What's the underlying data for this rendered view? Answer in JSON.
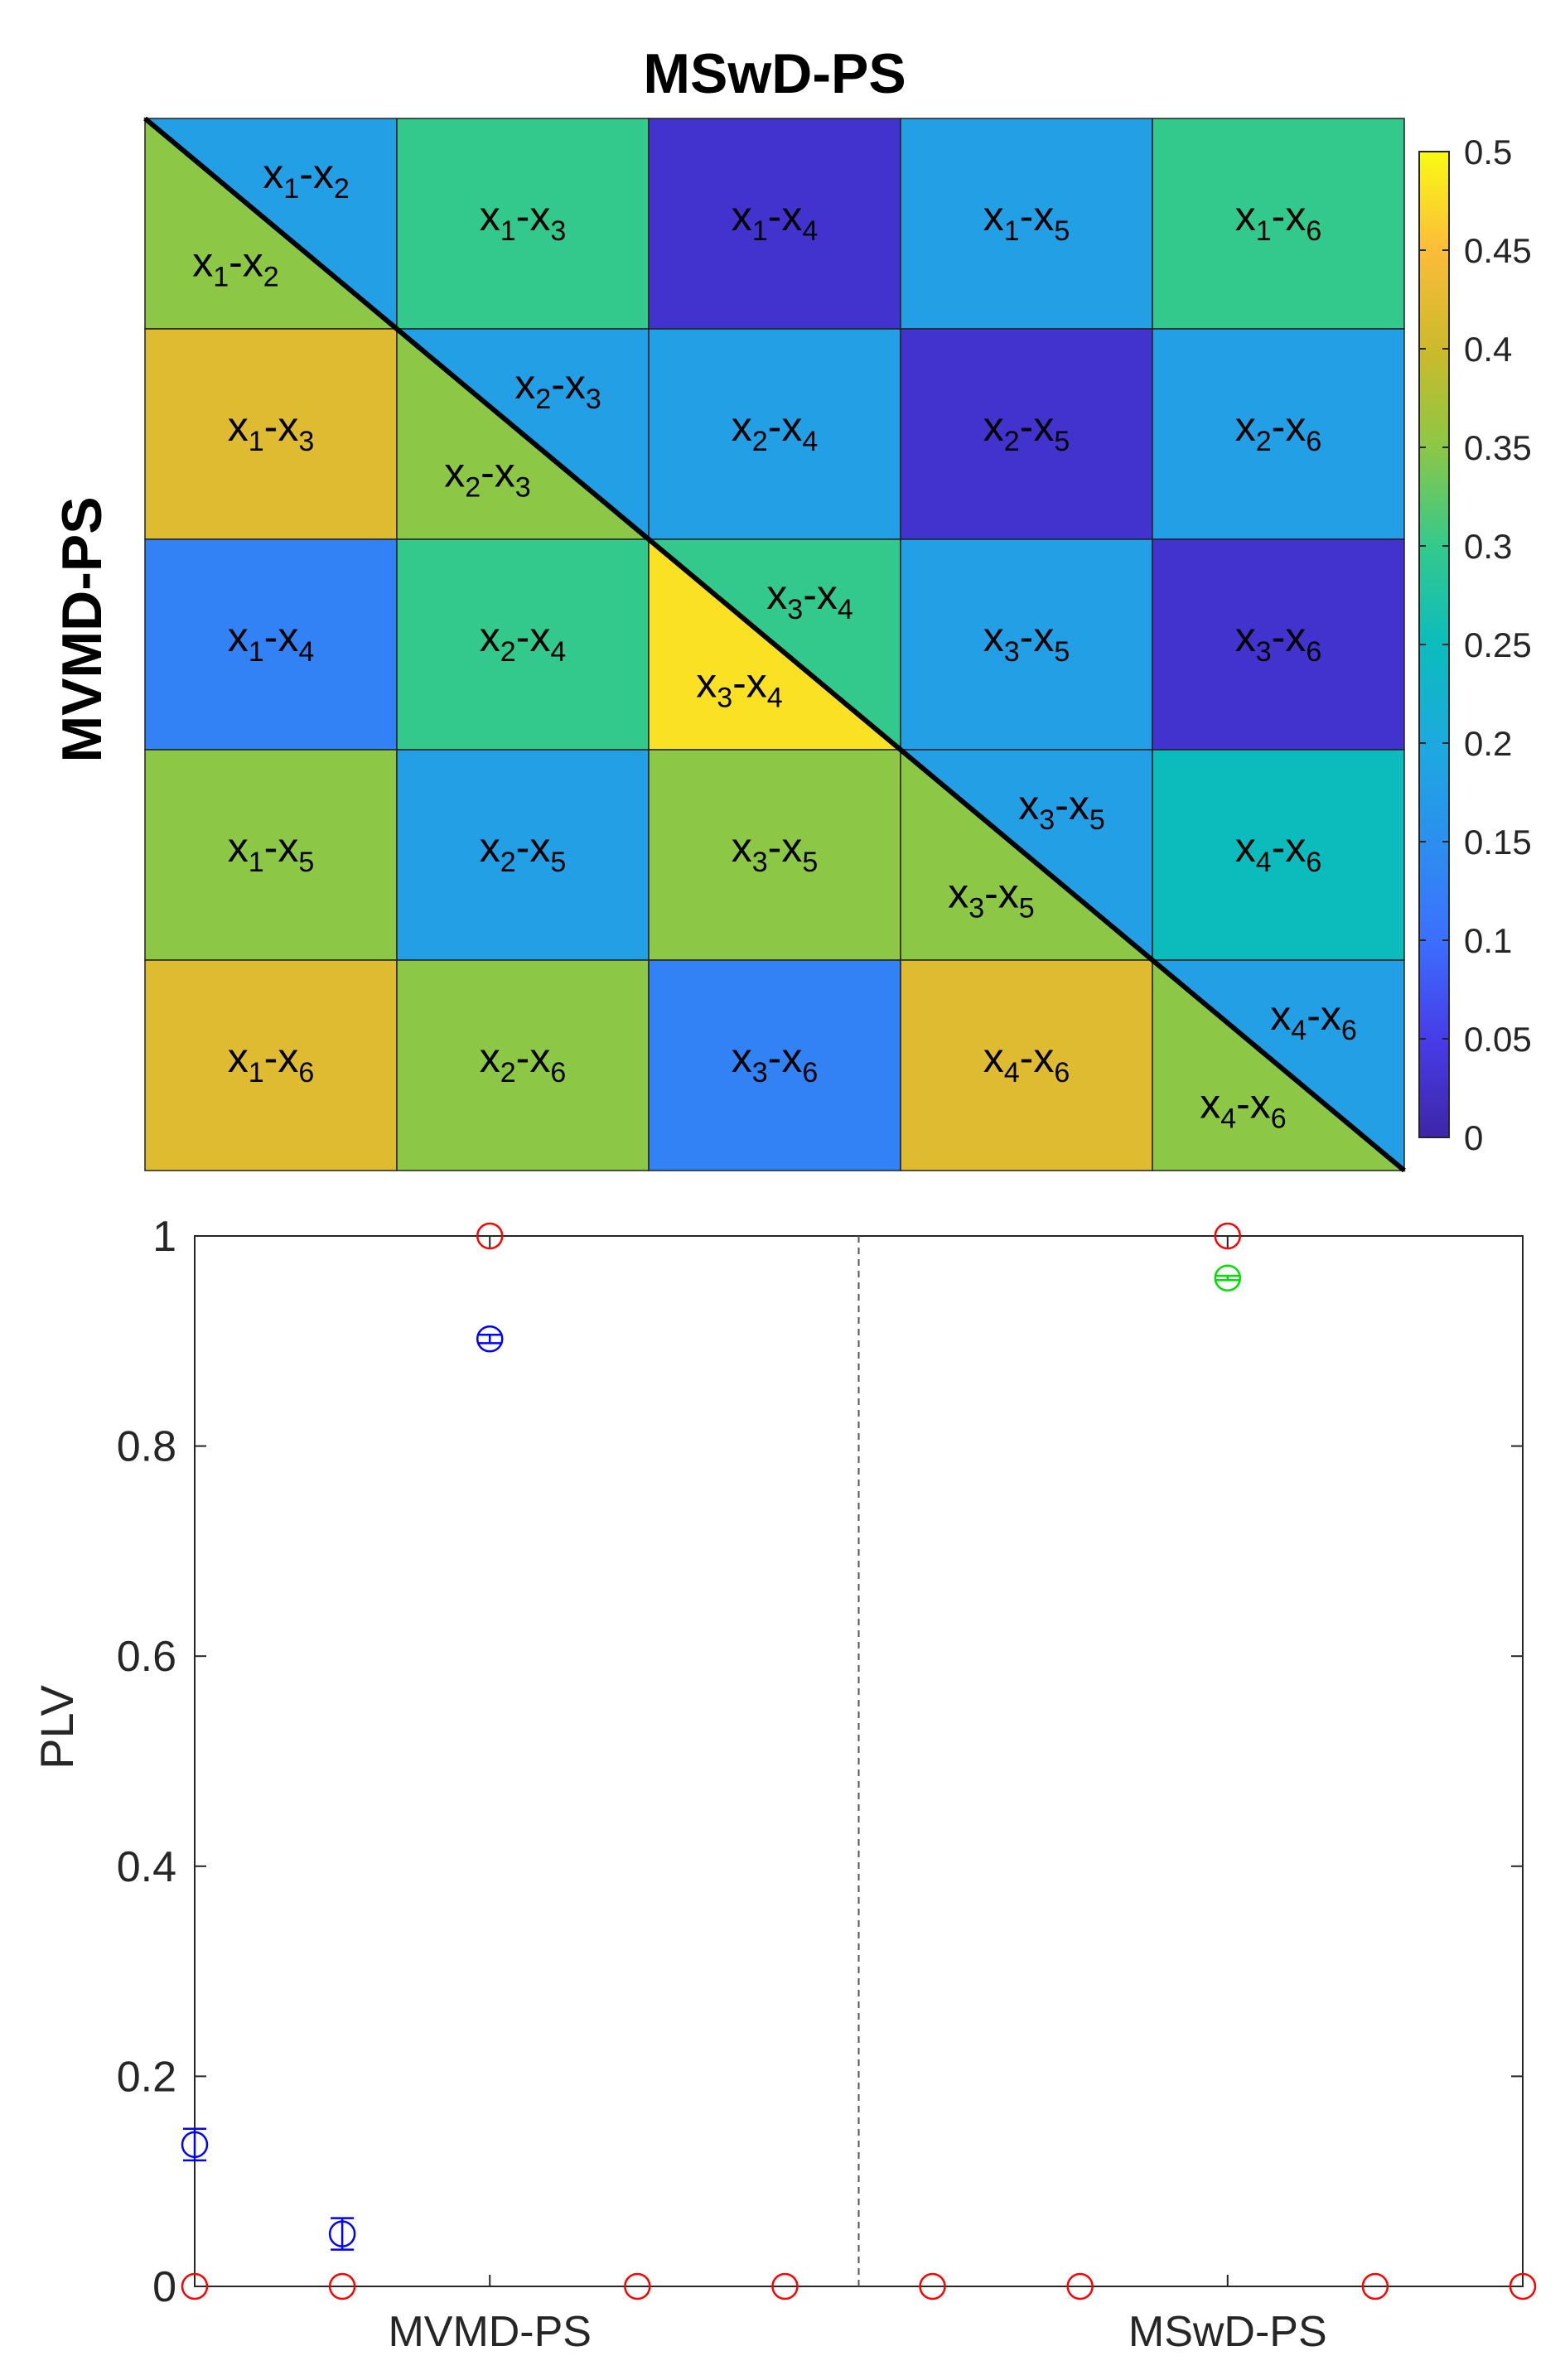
{
  "chart_data": [
    {
      "type": "heatmap",
      "title": "MSwD-PS",
      "ylabel": "MVMD-PS",
      "xlabel": "",
      "note_layout": "5x5 grid; upper-triangle cells show MSwD-PS pairs, lower-triangle and diagonal-lower halves show MVMD-PS pairs",
      "colormap": "parula",
      "clim": [
        0,
        0.5
      ],
      "colorbar_ticks": [
        "0",
        "0.05",
        "0.1",
        "0.15",
        "0.2",
        "0.25",
        "0.3",
        "0.35",
        "0.4",
        "0.45",
        "0.5"
      ],
      "cells": [
        [
          {
            "label_upper": {
              "a": "1",
              "b": "2"
            },
            "label_lower": {
              "a": "1",
              "b": "2"
            },
            "value_upper": 0.18,
            "value_lower": 0.35
          },
          {
            "label": {
              "a": "1",
              "b": "3"
            },
            "value": 0.3
          },
          {
            "label": {
              "a": "1",
              "b": "4"
            },
            "value": 0.03
          },
          {
            "label": {
              "a": "1",
              "b": "5"
            },
            "value": 0.18
          },
          {
            "label": {
              "a": "1",
              "b": "6"
            },
            "value": 0.3
          }
        ],
        [
          {
            "label": {
              "a": "1",
              "b": "3"
            },
            "value": 0.42
          },
          {
            "label_upper": {
              "a": "2",
              "b": "3"
            },
            "label_lower": {
              "a": "2",
              "b": "3"
            },
            "value_upper": 0.18,
            "value_lower": 0.35
          },
          {
            "label": {
              "a": "2",
              "b": "4"
            },
            "value": 0.18
          },
          {
            "label": {
              "a": "2",
              "b": "5"
            },
            "value": 0.03
          },
          {
            "label": {
              "a": "2",
              "b": "6"
            },
            "value": 0.18
          }
        ],
        [
          {
            "label": {
              "a": "1",
              "b": "4"
            },
            "value": 0.13
          },
          {
            "label": {
              "a": "2",
              "b": "4"
            },
            "value": 0.3
          },
          {
            "label_upper": {
              "a": "3",
              "b": "4"
            },
            "label_lower": {
              "a": "3",
              "b": "4"
            },
            "value_upper": 0.3,
            "value_lower": 0.48
          },
          {
            "label": {
              "a": "3",
              "b": "5"
            },
            "value": 0.18
          },
          {
            "label": {
              "a": "3",
              "b": "6"
            },
            "value": 0.03
          }
        ],
        [
          {
            "label": {
              "a": "1",
              "b": "5"
            },
            "value": 0.35
          },
          {
            "label": {
              "a": "2",
              "b": "5"
            },
            "value": 0.18
          },
          {
            "label": {
              "a": "3",
              "b": "5"
            },
            "value": 0.35
          },
          {
            "label_upper": {
              "a": "3",
              "b": "5"
            },
            "label_lower": {
              "a": "3",
              "b": "5"
            },
            "value_upper": 0.18,
            "value_lower": 0.35
          },
          {
            "label": {
              "a": "4",
              "b": "6"
            },
            "value": 0.25
          }
        ],
        [
          {
            "label": {
              "a": "1",
              "b": "6"
            },
            "value": 0.42
          },
          {
            "label": {
              "a": "2",
              "b": "6"
            },
            "value": 0.35
          },
          {
            "label": {
              "a": "3",
              "b": "6"
            },
            "value": 0.13
          },
          {
            "label": {
              "a": "4",
              "b": "6"
            },
            "value": 0.42
          },
          {
            "label_upper": {
              "a": "4",
              "b": "6"
            },
            "label_lower": {
              "a": "4",
              "b": "6"
            },
            "value_upper": 0.18,
            "value_lower": 0.35
          }
        ]
      ]
    },
    {
      "type": "scatter",
      "title": "",
      "xlabel": "",
      "ylabel": "PLV",
      "xlim": [
        1,
        10
      ],
      "ylim": [
        0,
        1
      ],
      "yticks": [
        "0",
        "0.2",
        "0.4",
        "0.6",
        "0.8",
        "1"
      ],
      "xtick_labels": [
        {
          "x": 3,
          "label": "MVMD-PS"
        },
        {
          "x": 8,
          "label": "MSwD-PS"
        }
      ],
      "divider_x": 5.5,
      "series": [
        {
          "color": "#ff0000",
          "points": [
            {
              "x": 1,
              "y": 0
            },
            {
              "x": 2,
              "y": 0
            },
            {
              "x": 3,
              "y": 1
            },
            {
              "x": 4,
              "y": 0
            },
            {
              "x": 5,
              "y": 0
            },
            {
              "x": 6,
              "y": 0
            },
            {
              "x": 7,
              "y": 0
            },
            {
              "x": 8,
              "y": 1
            },
            {
              "x": 9,
              "y": 0
            },
            {
              "x": 10,
              "y": 0
            }
          ]
        },
        {
          "color": "#0000ff",
          "points": [
            {
              "x": 1,
              "y": 0.135,
              "err": 0.015
            },
            {
              "x": 2,
              "y": 0.05,
              "err": 0.015
            },
            {
              "x": 3,
              "y": 0.902,
              "err": 0.004
            }
          ]
        },
        {
          "color": "#00dd00",
          "points": [
            {
              "x": 8,
              "y": 0.96,
              "err": 0.002
            }
          ]
        }
      ]
    }
  ]
}
